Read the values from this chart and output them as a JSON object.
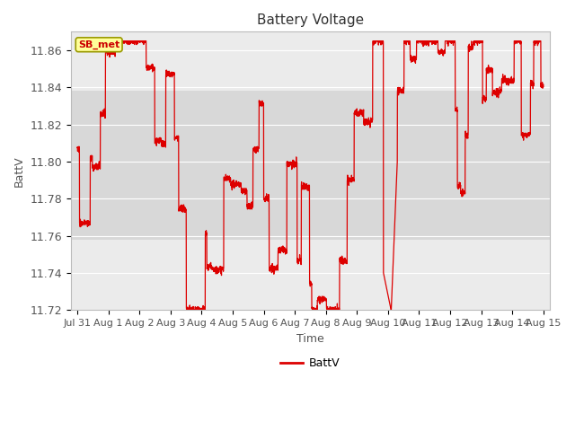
{
  "title": "Battery Voltage",
  "xlabel": "Time",
  "ylabel": "BattV",
  "legend_label": "BattV",
  "station_label": "SB_met",
  "line_color": "#dd0000",
  "background_color": "#ffffff",
  "plot_bg_color": "#ebebeb",
  "band_color": "#d8d8d8",
  "grid_color": "#ffffff",
  "ylim": [
    11.72,
    11.87
  ],
  "ytick_vals": [
    11.72,
    11.74,
    11.76,
    11.78,
    11.8,
    11.82,
    11.84,
    11.86
  ],
  "xtick_labels": [
    "Jul 31",
    "Aug 1",
    "Aug 2",
    "Aug 3",
    "Aug 4",
    "Aug 5",
    "Aug 6",
    "Aug 7",
    "Aug 8",
    "Aug 9",
    "Aug 10",
    "Aug 11",
    "Aug 12",
    "Aug 13",
    "Aug 14",
    "Aug 15"
  ],
  "xtick_positions": [
    0,
    1,
    2,
    3,
    4,
    5,
    6,
    7,
    8,
    9,
    10,
    11,
    12,
    13,
    14,
    15
  ],
  "band_ymin": 11.758,
  "band_ymax": 11.838,
  "n_days": 15,
  "seed": 7
}
